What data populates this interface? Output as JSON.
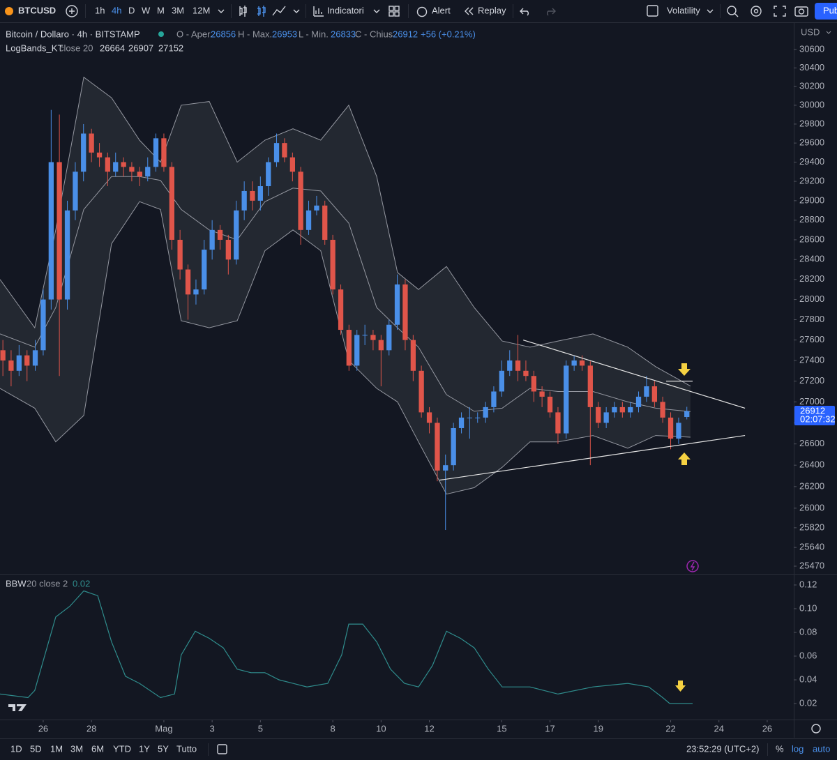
{
  "ui": {
    "symbol": "BTCUSD",
    "intervals": [
      "1h",
      "4h",
      "D",
      "W",
      "M",
      "3M",
      "12M"
    ],
    "indicators_button": "Indicatori",
    "alert_button": "Alert",
    "replay_button": "Replay",
    "layout_name": "Volatility",
    "publish_button": "Pub",
    "currency": "USD",
    "title": "Bitcoin / Dollaro · 4h · BITSTAMP",
    "open_label": "O - Aper.",
    "high_label": "H - Max.",
    "low_label": "L - Min.",
    "close_label": "C - Chius.",
    "change": "+56 (+0.21%)",
    "bands_indicator": "LogBands_KT",
    "bands_params": "close 20",
    "bbw_indicator": "BBW",
    "bbw_params": "20 close 2",
    "countdown": "02:07:32",
    "ranges": [
      "1D",
      "5D",
      "1M",
      "3M",
      "6M",
      "YTD",
      "1Y",
      "5Y",
      "Tutto"
    ],
    "clock": "23:52:29 (UTC+2)",
    "percent_button": "%",
    "log_button": "log",
    "auto_button": "auto"
  },
  "chart_data": [
    {
      "type": "candlestick",
      "log": true,
      "grid": false,
      "up_color": "#4a8fe8",
      "down_color": "#e0554a",
      "x": [
        24.33,
        24.67,
        25,
        25.33,
        25.67,
        26,
        26.33,
        26.67,
        27,
        27.33,
        27.67,
        28,
        28.33,
        28.67,
        29,
        29.33,
        29.67,
        30,
        30.33,
        30.67,
        31,
        31.33,
        31.67,
        32,
        32.33,
        32.67,
        33,
        33.33,
        33.67,
        34,
        34.33,
        34.67,
        35,
        35.33,
        35.67,
        36,
        36.33,
        36.67,
        37,
        37.33,
        37.67,
        38,
        38.33,
        38.67,
        39,
        39.33,
        39.67,
        40,
        40.33,
        40.67,
        41,
        41.33,
        41.67,
        42,
        42.33,
        42.67,
        43,
        43.33,
        43.67,
        44,
        44.33,
        44.67,
        45,
        45.33,
        45.67,
        46,
        46.33,
        46.67,
        47,
        47.33,
        47.67,
        48,
        48.33,
        48.67,
        49,
        49.33,
        49.67,
        50,
        50.33,
        50.67,
        51,
        51.33,
        51.67,
        52,
        52.33,
        52.67
      ],
      "open": [
        27500,
        27400,
        27300,
        27450,
        27350,
        27500,
        28000,
        29400,
        28000,
        28900,
        29300,
        29700,
        29500,
        29450,
        29300,
        29400,
        29350,
        29300,
        29250,
        29350,
        29650,
        29350,
        28600,
        28300,
        28050,
        28100,
        28500,
        28700,
        28600,
        28400,
        28900,
        29100,
        29000,
        29150,
        29400,
        29600,
        29450,
        29300,
        28700,
        28900,
        28950,
        28600,
        28100,
        27700,
        27350,
        27650,
        27650,
        27600,
        27500,
        27750,
        28150,
        27600,
        27300,
        26900,
        26800,
        26350,
        26400,
        26750,
        26850,
        26850,
        26850,
        26950,
        27100,
        27300,
        27400,
        27300,
        27250,
        27100,
        27050,
        26900,
        26700,
        27350,
        27400,
        27350,
        26950,
        26800,
        26900,
        26950,
        26900,
        26950,
        27050,
        27150,
        27000,
        26850,
        26650,
        26856
      ],
      "high": [
        27600,
        27500,
        27550,
        27500,
        27600,
        28100,
        29950,
        29900,
        29000,
        29400,
        29800,
        29750,
        29600,
        29500,
        29500,
        29450,
        29400,
        29350,
        29450,
        29700,
        29700,
        29400,
        28700,
        28350,
        28200,
        28600,
        28800,
        28750,
        28650,
        29000,
        29200,
        29200,
        29250,
        29450,
        29700,
        29650,
        29500,
        29350,
        29000,
        29050,
        29000,
        28650,
        28150,
        27750,
        27700,
        27750,
        27700,
        27650,
        27800,
        28250,
        28200,
        27650,
        27350,
        26950,
        26850,
        26500,
        26800,
        26900,
        26950,
        26900,
        27000,
        27150,
        27400,
        27500,
        27650,
        27400,
        27300,
        27150,
        27100,
        26950,
        27400,
        27450,
        27450,
        27400,
        27000,
        26950,
        27000,
        27000,
        27000,
        27100,
        27250,
        27200,
        27050,
        26900,
        26850,
        26953
      ],
      "low": [
        27250,
        27150,
        27250,
        27200,
        27300,
        27450,
        27900,
        27250,
        27900,
        28800,
        29200,
        29400,
        29350,
        29150,
        29250,
        29250,
        29200,
        29150,
        29200,
        29300,
        29300,
        28500,
        28200,
        27800,
        27950,
        28050,
        28400,
        28500,
        28250,
        28350,
        28800,
        28900,
        28900,
        29050,
        29350,
        29400,
        29200,
        28550,
        28650,
        28850,
        28550,
        28050,
        27650,
        27300,
        27300,
        27550,
        27500,
        27150,
        27450,
        27700,
        27500,
        27200,
        26850,
        26700,
        26250,
        25800,
        26350,
        26700,
        26650,
        26800,
        26800,
        26900,
        27050,
        27250,
        27200,
        27200,
        27000,
        26950,
        26850,
        26600,
        26650,
        27300,
        27300,
        26400,
        26750,
        26750,
        26850,
        26850,
        26850,
        26900,
        27000,
        26950,
        26800,
        26550,
        26600,
        26833
      ],
      "close": [
        27400,
        27300,
        27450,
        27350,
        27500,
        28000,
        29400,
        28000,
        28900,
        29300,
        29700,
        29500,
        29450,
        29300,
        29400,
        29350,
        29300,
        29250,
        29350,
        29650,
        29350,
        28600,
        28300,
        28050,
        28100,
        28500,
        28700,
        28600,
        28400,
        28900,
        29100,
        29000,
        29150,
        29400,
        29600,
        29450,
        29300,
        28700,
        28900,
        28950,
        28600,
        28100,
        27700,
        27350,
        27650,
        27650,
        27600,
        27500,
        27750,
        28150,
        27600,
        27300,
        26900,
        26800,
        26350,
        26400,
        26750,
        26850,
        26850,
        26850,
        26950,
        27100,
        27300,
        27400,
        27300,
        27250,
        27100,
        27050,
        26900,
        26700,
        27350,
        27400,
        27350,
        26950,
        26800,
        26900,
        26950,
        26900,
        26950,
        27050,
        27150,
        27000,
        26850,
        26650,
        26800,
        26912
      ],
      "bands": {
        "color": "#9598a1",
        "fill": "#262a33",
        "x": [
          24.21,
          25.65,
          26.52,
          27.68,
          28.83,
          29.99,
          30.86,
          31.72,
          32.88,
          34.04,
          35.19,
          36.35,
          37.5,
          38.66,
          39.82,
          40.68,
          41.55,
          42.71,
          43.86,
          45.02,
          46.17,
          47.33,
          48.78,
          50.22,
          51.38,
          52.82
        ],
        "upper": [
          28200,
          27720,
          28700,
          30300,
          30080,
          29630,
          29400,
          30000,
          30040,
          29400,
          29630,
          29750,
          29630,
          30000,
          29250,
          28270,
          28100,
          28330,
          27920,
          27590,
          27530,
          27590,
          27660,
          27530,
          27340,
          27152
        ],
        "middle": [
          27660,
          27530,
          27920,
          28910,
          29250,
          29250,
          29210,
          28910,
          28700,
          28600,
          28990,
          29130,
          29100,
          28770,
          27920,
          27720,
          27530,
          27070,
          26910,
          26940,
          27130,
          27100,
          27100,
          27000,
          26940,
          26907
        ],
        "lower": [
          27130,
          26940,
          26620,
          26870,
          28560,
          28990,
          28910,
          27790,
          27720,
          27790,
          28490,
          28700,
          28490,
          27400,
          27130,
          27000,
          26620,
          26130,
          26190,
          26380,
          26620,
          26620,
          26680,
          26560,
          26680,
          26664
        ]
      },
      "trendlines": [
        {
          "x": [
            45.89,
            55.08
          ],
          "y": [
            27600,
            26940
          ]
        },
        {
          "x": [
            42.42,
            55.08
          ],
          "y": [
            26260,
            26680
          ]
        },
        {
          "x": [
            51.81,
            52.91
          ],
          "y": [
            27200,
            27200
          ]
        }
      ],
      "xlim": [
        24.21,
        57.1
      ],
      "xticks": [
        26,
        28,
        {
          "value": 31,
          "label": "Mag"
        },
        {
          "value": 33,
          "label": "3"
        },
        {
          "value": 35,
          "label": "5"
        },
        {
          "value": 38,
          "label": "8"
        },
        {
          "value": 40,
          "label": "10"
        },
        {
          "value": 42,
          "label": "12"
        },
        {
          "value": 45,
          "label": "15"
        },
        {
          "value": 47,
          "label": "17"
        },
        {
          "value": 49,
          "label": "19"
        },
        {
          "value": 52,
          "label": "22"
        },
        {
          "value": 54,
          "label": "24"
        },
        {
          "value": 56,
          "label": "26"
        }
      ],
      "ylim": [
        25407,
        30889
      ],
      "yticks": [
        30600,
        30400,
        30200,
        30000,
        29800,
        29600,
        29400,
        29200,
        29000,
        28800,
        28600,
        28400,
        28200,
        28000,
        27800,
        27600,
        27400,
        27200,
        27000,
        26800,
        26600,
        26400,
        26200,
        26000,
        25820,
        25640,
        25470
      ]
    },
    {
      "type": "line",
      "color": "#2f8c8c",
      "x": [
        24.21,
        25.37,
        25.65,
        26.52,
        27.1,
        27.68,
        28.26,
        28.83,
        29.41,
        29.99,
        30.86,
        31.44,
        31.72,
        32.3,
        32.88,
        33.46,
        34.04,
        34.61,
        35.19,
        35.77,
        36.35,
        36.93,
        37.79,
        38.37,
        38.66,
        39.24,
        39.82,
        40.39,
        40.97,
        41.55,
        42.13,
        42.71,
        43.29,
        43.86,
        44.44,
        45.02,
        46.17,
        47.33,
        48.78,
        50.22,
        51.09,
        51.67,
        51.96,
        52.91
      ],
      "values": [
        0.028,
        0.025,
        0.031,
        0.093,
        0.102,
        0.115,
        0.111,
        0.072,
        0.043,
        0.037,
        0.025,
        0.028,
        0.061,
        0.081,
        0.075,
        0.067,
        0.049,
        0.046,
        0.046,
        0.04,
        0.037,
        0.034,
        0.037,
        0.061,
        0.087,
        0.087,
        0.072,
        0.049,
        0.037,
        0.034,
        0.052,
        0.081,
        0.075,
        0.067,
        0.049,
        0.034,
        0.034,
        0.028,
        0.034,
        0.037,
        0.034,
        0.025,
        0.02,
        0.02
      ],
      "xlim": [
        24.21,
        57.1
      ],
      "ylim": [
        0.0065,
        0.1288
      ],
      "yticks": [
        0.12,
        {
          "value": 0.1,
          "label": "0.10"
        },
        0.08,
        0.06,
        0.04,
        0.02
      ]
    }
  ]
}
